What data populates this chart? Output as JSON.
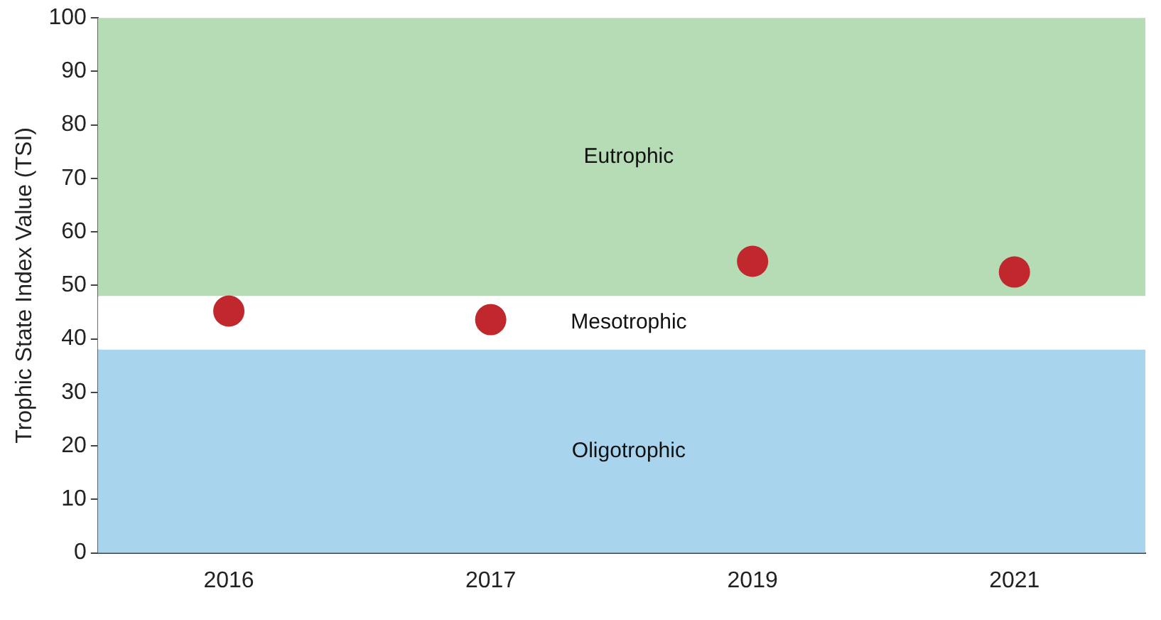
{
  "chart_data": {
    "type": "scatter",
    "ylabel": "Trophic State Index Value (TSI)",
    "categories": [
      "2016",
      "2017",
      "2019",
      "2021"
    ],
    "series": [
      {
        "color": "#c0282d",
        "values": [
          45.2,
          43.6,
          54.5,
          52.5
        ]
      }
    ],
    "ylim": [
      0,
      100
    ],
    "yticks": [
      0,
      10,
      20,
      30,
      40,
      50,
      60,
      70,
      80,
      90,
      100
    ],
    "bands": [
      {
        "axis": "y",
        "from": 48,
        "to": 100,
        "label": "Eutrophic",
        "color": "#b5dcb5"
      },
      {
        "axis": "y",
        "from": 38,
        "to": 48,
        "label": "Mesotrophic",
        "color": "#ffffff"
      },
      {
        "axis": "y",
        "from": 0,
        "to": 38,
        "label": "Oligotrophic",
        "color": "#a8d4ee"
      }
    ],
    "grid": false,
    "legend": false,
    "marker": "circle"
  }
}
